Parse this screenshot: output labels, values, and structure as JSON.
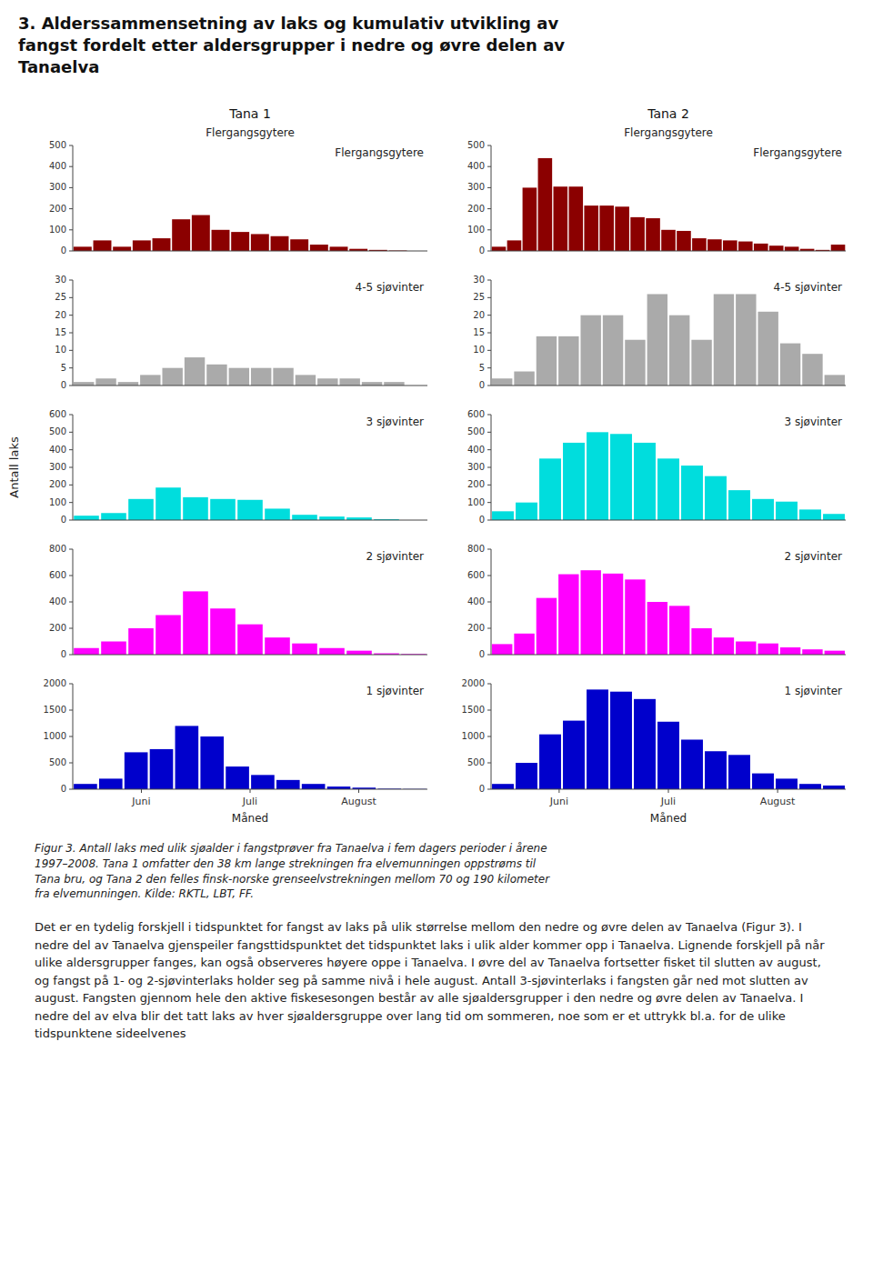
{
  "title": "3. Alderssammensetning av laks og kumulativ utvikling av\nfangst fordelt etter aldersgrupper i nedre og øvre delen av\nTanaelva",
  "ylabel": "Antall laks",
  "annotations": [
    "Figur 3. Antall laks med ulik sjøalder i fangstprøver fra Tanaelva i fem dagers perioder i årene\n1997–2008. Tana 1 omfatter den 38 km lange strekningen fra elvemunningen oppstrøms til\nTana bru, og Tana 2 den felles finsk-norske grenseelvstrekningen mellom 70 og 190 kilometer\nfra elvemunningen. Kilde: RKTL, LBT, FF.",
    "Det er en tydelig forskjell i tidspunktet for fangst av laks på ulik størrelse mellom den nedre og øvre delen av Tanaelva (Figur 3). I nedre del av Tanaelva gjenspeiler fangsttidspunktet det tidspunktet laks i ulik alder kommer opp i Tanaelva. Lignende forskjell på når ulike aldersgrupper fanges, kan også observeres høyere oppe i Tanaelva. I øvre del av Tanaelva fortsetter fisket til slutten av august, og fangst på 1- og 2-sjøvinterlaks holder seg på samme nivå i hele august. Antall 3-sjøvinterlaks i fangsten går ned mot slutten av august. Fangsten gjennom hele den aktive fiskesesongen består av alle sjøaldersgrupper i den nedre og øvre delen av Tanaelva. I nedre del av elva blir det tatt laks av hver sjøaldersgruppe over lang tid om sommeren, noe som er et uttrykk bl.a. for de ulike tidspunktene sideelvenes"
  ],
  "chart_data": [
    {
      "type": "bar",
      "title": "Flergangsgytere",
      "subtitle": "Tana 1",
      "annotations": [
        "Flergangsgytere"
      ],
      "categories": [
        null,
        null,
        null,
        null,
        null,
        null,
        null,
        null,
        null,
        null,
        null,
        null,
        null,
        null,
        null,
        null,
        null,
        null
      ],
      "values": [
        20,
        50,
        20,
        50,
        60,
        150,
        170,
        100,
        90,
        80,
        70,
        55,
        30,
        20,
        10,
        5,
        2,
        0
      ],
      "color": "#8B0000",
      "ylim": [
        0,
        500
      ],
      "yticks": [
        0,
        100,
        200,
        300,
        400,
        500
      ],
      "tick_labels": "y"
    },
    {
      "type": "bar",
      "title": "Flergangsgytere",
      "subtitle": "Tana 2",
      "annotations": [
        "Flergangsgytere"
      ],
      "categories": [
        null,
        null,
        null,
        null,
        null,
        null,
        null,
        null,
        null,
        null,
        null,
        null,
        null,
        null,
        null,
        null,
        null,
        null,
        null,
        null,
        null,
        null,
        null
      ],
      "values": [
        20,
        50,
        300,
        440,
        305,
        305,
        215,
        215,
        210,
        160,
        155,
        100,
        95,
        60,
        55,
        50,
        45,
        35,
        25,
        20,
        10,
        5,
        30
      ],
      "color": "#8B0000",
      "ylim": [
        0,
        500
      ],
      "yticks": [
        0,
        100,
        200,
        300,
        400,
        500
      ],
      "tick_labels": "y"
    },
    {
      "type": "bar",
      "title": "4-5 sjøvinter",
      "categories": [
        null,
        null,
        null,
        null,
        null,
        null,
        null,
        null,
        null,
        null,
        null,
        null,
        null,
        null,
        null,
        null
      ],
      "values": [
        1,
        2,
        1,
        3,
        5,
        8,
        6,
        5,
        5,
        5,
        3,
        2,
        2,
        1,
        1,
        0
      ],
      "color": "#AAAAAA",
      "ylim": [
        0,
        30
      ],
      "yticks": [
        0,
        5,
        10,
        15,
        20,
        25,
        30
      ],
      "tick_labels": "y"
    },
    {
      "type": "bar",
      "title": "4-5 sjøvinter",
      "categories": [
        null,
        null,
        null,
        null,
        null,
        null,
        null,
        null,
        null,
        null,
        null,
        null,
        null,
        null,
        null,
        null
      ],
      "values": [
        2,
        4,
        14,
        14,
        20,
        20,
        13,
        26,
        20,
        13,
        26,
        26,
        21,
        12,
        9,
        3
      ],
      "color": "#AAAAAA",
      "ylim": [
        0,
        30
      ],
      "yticks": [
        0,
        5,
        10,
        15,
        20,
        25,
        30
      ],
      "tick_labels": "y"
    },
    {
      "type": "bar",
      "title": "3 sjøvinter",
      "categories": [
        null,
        null,
        null,
        null,
        null,
        null,
        null,
        null,
        null,
        null,
        null,
        null,
        null
      ],
      "values": [
        25,
        40,
        120,
        185,
        130,
        120,
        115,
        65,
        30,
        20,
        15,
        5,
        0
      ],
      "color": "#00DDDD",
      "ylim": [
        0,
        600
      ],
      "yticks": [
        0,
        100,
        200,
        300,
        400,
        500,
        600
      ],
      "tick_labels": "y"
    },
    {
      "type": "bar",
      "title": "3 sjøvinter",
      "categories": [
        null,
        null,
        null,
        null,
        null,
        null,
        null,
        null,
        null,
        null,
        null,
        null,
        null,
        null,
        null
      ],
      "values": [
        50,
        100,
        350,
        440,
        500,
        490,
        440,
        350,
        310,
        250,
        170,
        120,
        105,
        60,
        35
      ],
      "color": "#00DDDD",
      "ylim": [
        0,
        600
      ],
      "yticks": [
        0,
        100,
        200,
        300,
        400,
        500,
        600
      ],
      "tick_labels": "y"
    },
    {
      "type": "bar",
      "title": "2 sjøvinter",
      "categories": [
        null,
        null,
        null,
        null,
        null,
        null,
        null,
        null,
        null,
        null,
        null,
        null,
        null
      ],
      "values": [
        50,
        100,
        200,
        300,
        480,
        350,
        230,
        130,
        85,
        50,
        30,
        10,
        5
      ],
      "color": "#FF00FF",
      "ylim": [
        0,
        800
      ],
      "yticks": [
        0,
        200,
        400,
        600,
        800
      ],
      "tick_labels": "y"
    },
    {
      "type": "bar",
      "title": "2 sjøvinter",
      "categories": [
        null,
        null,
        null,
        null,
        null,
        null,
        null,
        null,
        null,
        null,
        null,
        null,
        null,
        null,
        null,
        null
      ],
      "values": [
        80,
        160,
        430,
        610,
        640,
        615,
        570,
        400,
        370,
        200,
        130,
        100,
        85,
        55,
        40,
        30
      ],
      "color": "#FF00FF",
      "ylim": [
        0,
        800
      ],
      "yticks": [
        0,
        200,
        400,
        600,
        800
      ],
      "tick_labels": "y"
    },
    {
      "type": "bar",
      "title": "1 sjøvinter",
      "xlabel": "Måned",
      "categories": [
        null,
        null,
        null,
        null,
        null,
        null,
        null,
        null,
        null,
        null,
        null,
        null,
        null,
        null
      ],
      "values": [
        100,
        200,
        700,
        760,
        1200,
        1000,
        430,
        270,
        175,
        100,
        50,
        30,
        10,
        5
      ],
      "color": "#0000CC",
      "ylim": [
        0,
        2000
      ],
      "yticks": [
        0,
        500,
        1000,
        1500,
        2000
      ],
      "xticks": [
        {
          "value": 2.21,
          "label": "Juni"
        },
        {
          "value": 6.5,
          "label": "Juli"
        },
        {
          "value": 10.79,
          "label": "August"
        }
      ]
    },
    {
      "type": "bar",
      "title": "1 sjøvinter",
      "xlabel": "Måned",
      "categories": [
        null,
        null,
        null,
        null,
        null,
        null,
        null,
        null,
        null,
        null,
        null,
        null,
        null,
        null,
        null
      ],
      "values": [
        100,
        500,
        1040,
        1300,
        1890,
        1850,
        1710,
        1280,
        940,
        720,
        650,
        300,
        200,
        100,
        70
      ],
      "color": "#0000CC",
      "ylim": [
        0,
        2000
      ],
      "yticks": [
        0,
        500,
        1000,
        1500,
        2000
      ],
      "xticks": [
        {
          "value": 2.38,
          "label": "Juni"
        },
        {
          "value": 7,
          "label": "Juli"
        },
        {
          "value": 11.62,
          "label": "August"
        }
      ]
    }
  ]
}
